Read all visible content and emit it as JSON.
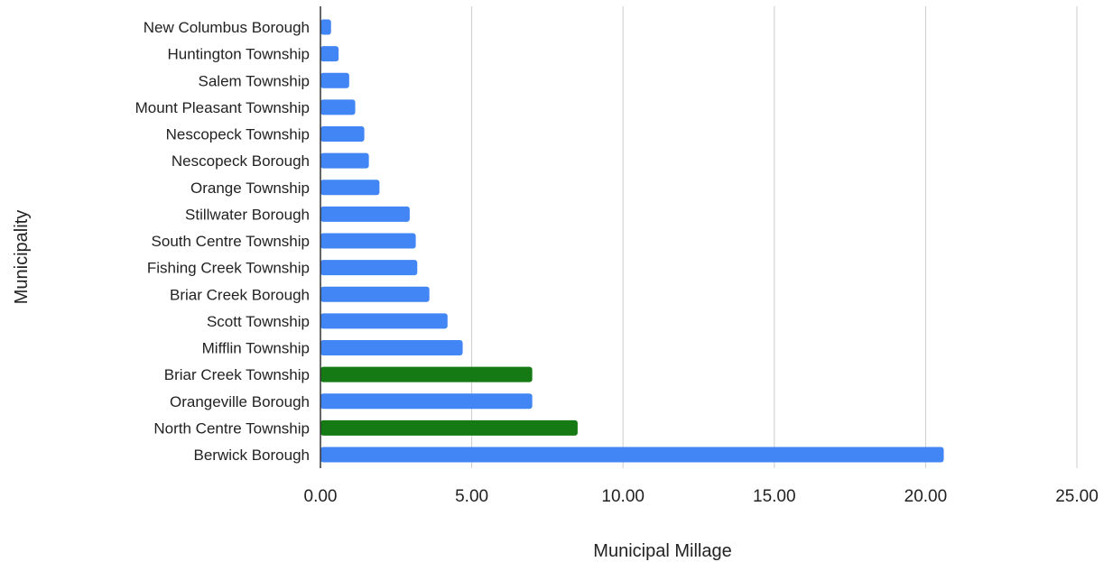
{
  "chart_data": {
    "type": "bar",
    "orientation": "horizontal",
    "xlabel": "Municipal Millage",
    "ylabel": "Municipality",
    "xlim": [
      0,
      25
    ],
    "x_ticks": [
      0,
      5,
      10,
      15,
      20,
      25
    ],
    "x_tick_labels": [
      "0.00",
      "5.00",
      "10.00",
      "15.00",
      "20.00",
      "25.00"
    ],
    "grid": "vertical",
    "legend": "none",
    "colors": {
      "default": "#4285f4",
      "highlight": "#157a13",
      "grid": "#cccccc",
      "axis": "#333333"
    },
    "categories": [
      "New Columbus Borough",
      "Huntington Township",
      "Salem Township",
      "Mount Pleasant Township",
      "Nescopeck Township",
      "Nescopeck Borough",
      "Orange Township",
      "Stillwater Borough",
      "South Centre Township",
      "Fishing Creek Township",
      "Briar Creek Borough",
      "Scott Township",
      "Mifflin Township",
      "Briar Creek Township",
      "Orangeville Borough",
      "North Centre Township",
      "Berwick Borough"
    ],
    "values": [
      0.35,
      0.6,
      0.95,
      1.15,
      1.45,
      1.6,
      1.95,
      2.95,
      3.15,
      3.2,
      3.6,
      4.2,
      4.7,
      7.0,
      7.0,
      8.5,
      20.6
    ],
    "highlighted": [
      false,
      false,
      false,
      false,
      false,
      false,
      false,
      false,
      false,
      false,
      false,
      false,
      false,
      true,
      false,
      true,
      false
    ]
  }
}
